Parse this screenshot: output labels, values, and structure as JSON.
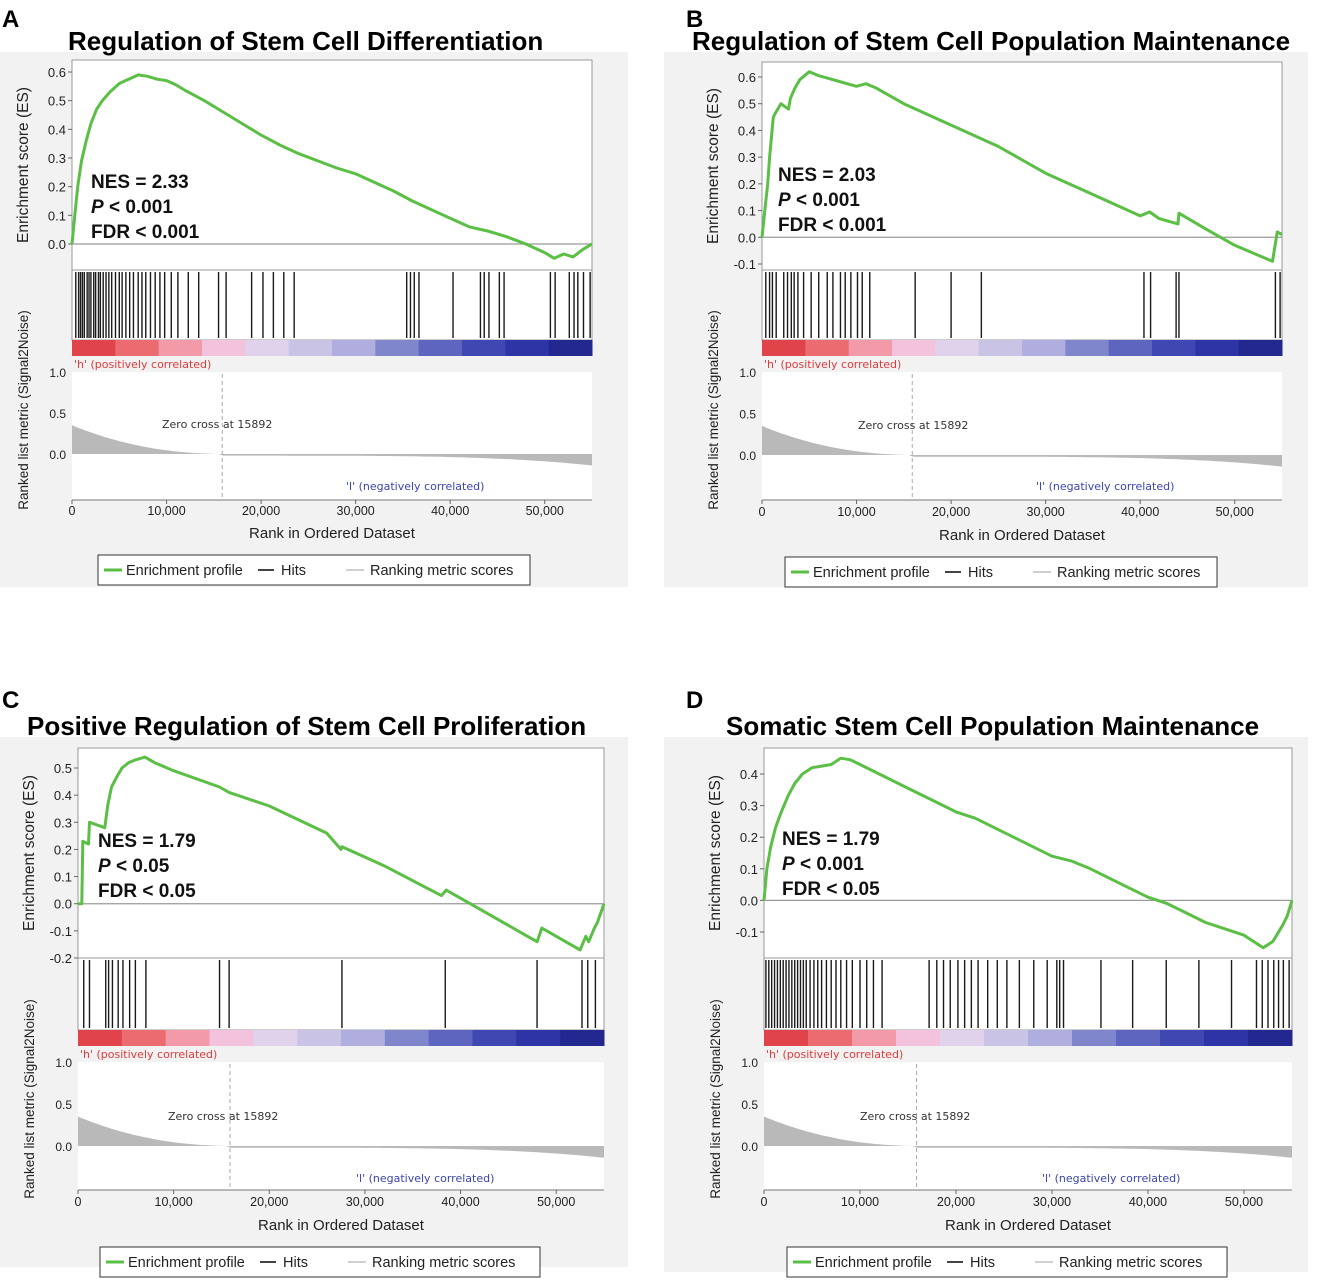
{
  "colors": {
    "profile": "#5bbf45",
    "hits": "#1a1a1a",
    "metric": "#b9b9b9",
    "background": "#f2f2f2",
    "pos_label": "#e03a3a",
    "neg_label": "#3a45b0"
  },
  "shared": {
    "ylabel_top": "Enrichment score (ES)",
    "ylabel_bottom": "Ranked list metric (Signal2Noise)",
    "xlabel": "Rank in Ordered Dataset",
    "pos_label": "'h' (positively correlated)",
    "neg_label": "'l' (negatively correlated)",
    "zero_cross": "Zero cross at 15892",
    "legend": [
      "Enrichment profile",
      "Hits",
      "Ranking metric scores"
    ],
    "metric_ticks": [
      "1.0",
      "0.5",
      "0.0"
    ]
  },
  "chart_data": [
    {
      "type": "line",
      "letter": "A",
      "title": "Regulation of Stem Cell Differentiation",
      "nes": "NES = 2.33",
      "p_sym": "P",
      "p_text": " < 0.001",
      "fdr": "FDR < 0.001",
      "xlim": [
        0,
        55000
      ],
      "ylim": [
        -0.02,
        0.61
      ],
      "yticks": [
        0,
        0.1,
        0.2,
        0.3,
        0.4,
        0.5,
        0.6
      ],
      "ytick_labels": [
        "0.0",
        "0.1",
        "0.2",
        "0.3",
        "0.4",
        "0.5",
        "0.6"
      ],
      "xticks": [
        0,
        10000,
        20000,
        30000,
        40000,
        50000
      ],
      "xtick_labels": [
        "0",
        "10,000",
        "20,000",
        "30,000",
        "40,000",
        "50,000"
      ],
      "es_x": [
        0,
        300,
        600,
        1000,
        1500,
        2000,
        2600,
        3200,
        4000,
        5000,
        6000,
        7000,
        8000,
        9000,
        10000,
        11000,
        12000,
        14000,
        16000,
        18000,
        20000,
        22000,
        24000,
        26000,
        28000,
        30000,
        32000,
        34000,
        36000,
        38000,
        40000,
        42000,
        44000,
        46000,
        48000,
        50000,
        51000,
        52000,
        53000,
        54000,
        55000
      ],
      "es_y": [
        0,
        0.1,
        0.2,
        0.29,
        0.36,
        0.42,
        0.47,
        0.5,
        0.53,
        0.56,
        0.575,
        0.59,
        0.585,
        0.575,
        0.57,
        0.555,
        0.535,
        0.5,
        0.46,
        0.42,
        0.38,
        0.345,
        0.315,
        0.29,
        0.265,
        0.245,
        0.215,
        0.185,
        0.15,
        0.12,
        0.09,
        0.06,
        0.045,
        0.025,
        0.0,
        -0.03,
        -0.05,
        -0.035,
        -0.045,
        -0.02,
        0.0
      ],
      "hits": [
        400,
        700,
        900,
        1100,
        1300,
        1600,
        1800,
        2000,
        2300,
        2500,
        2800,
        3000,
        3300,
        3600,
        3900,
        4200,
        4600,
        5000,
        5300,
        5700,
        6100,
        6500,
        7000,
        7400,
        7800,
        8300,
        8800,
        9300,
        9800,
        10500,
        11200,
        12300,
        13400,
        15500,
        16300,
        19000,
        20200,
        21300,
        22400,
        23500,
        35400,
        35800,
        36200,
        36700,
        40300,
        43200,
        43600,
        44100,
        45200,
        45700,
        50600,
        51100,
        52600,
        53100,
        53500,
        54100,
        54800
      ]
    },
    {
      "type": "line",
      "letter": "B",
      "title": "Regulation of Stem Cell Population Maintenance",
      "nes": "NES = 2.03",
      "p_sym": "P",
      "p_text": " < 0.001",
      "fdr": "FDR < 0.001",
      "xlim": [
        0,
        55000
      ],
      "ylim": [
        -0.12,
        0.65
      ],
      "yticks": [
        -0.1,
        0,
        0.1,
        0.2,
        0.3,
        0.4,
        0.5,
        0.6
      ],
      "ytick_labels": [
        "-0.1",
        "0.0",
        "0.1",
        "0.2",
        "0.3",
        "0.4",
        "0.5",
        "0.6"
      ],
      "xticks": [
        0,
        10000,
        20000,
        30000,
        40000,
        50000
      ],
      "xtick_labels": [
        "0",
        "10,000",
        "20,000",
        "30,000",
        "40,000",
        "50,000"
      ],
      "es_x": [
        0,
        300,
        600,
        800,
        1200,
        1500,
        2000,
        2800,
        3000,
        3500,
        4000,
        5000,
        6000,
        7000,
        8000,
        9000,
        10000,
        11000,
        12000,
        15000,
        20000,
        25000,
        30000,
        35000,
        40000,
        41000,
        42000,
        44000,
        44100,
        47000,
        50000,
        54000,
        54500,
        55000
      ],
      "es_y": [
        0,
        0.1,
        0.2,
        0.3,
        0.45,
        0.47,
        0.5,
        0.48,
        0.52,
        0.56,
        0.59,
        0.62,
        0.605,
        0.595,
        0.585,
        0.575,
        0.565,
        0.575,
        0.56,
        0.5,
        0.42,
        0.34,
        0.24,
        0.16,
        0.08,
        0.095,
        0.07,
        0.05,
        0.09,
        0.03,
        -0.03,
        -0.09,
        0.02,
        0.01
      ],
      "hits": [
        400,
        800,
        1100,
        1500,
        2300,
        2700,
        3100,
        3400,
        3800,
        4400,
        5200,
        6000,
        6900,
        7500,
        8300,
        8800,
        9400,
        10100,
        10600,
        11400,
        16200,
        20000,
        23200,
        40400,
        41100,
        43800,
        44100,
        54300,
        54800
      ]
    },
    {
      "type": "line",
      "letter": "C",
      "title": "Positive Regulation of Stem Cell Proliferation",
      "nes": "NES = 1.79",
      "p_sym": "P",
      "p_text": " < 0.05",
      "fdr": "FDR < 0.05",
      "xlim": [
        0,
        55000
      ],
      "ylim": [
        -0.22,
        0.56
      ],
      "yticks": [
        -0.2,
        -0.1,
        0,
        0.1,
        0.2,
        0.3,
        0.4,
        0.5
      ],
      "ytick_labels": [
        "-0.2",
        "-0.1",
        "0.0",
        "0.1",
        "0.2",
        "0.3",
        "0.4",
        "0.5"
      ],
      "xticks": [
        0,
        10000,
        20000,
        30000,
        40000,
        50000
      ],
      "xtick_labels": [
        "0",
        "10,000",
        "20,000",
        "30,000",
        "40,000",
        "50,000"
      ],
      "es_x": [
        0,
        400,
        500,
        1100,
        1200,
        2800,
        3100,
        3500,
        4100,
        4600,
        5300,
        6000,
        7000,
        8000,
        10000,
        14800,
        15800,
        20000,
        26000,
        27500,
        27600,
        32000,
        38000,
        38500,
        42000,
        47000,
        48000,
        48500,
        52500,
        53100,
        53400,
        54000,
        54300,
        55000
      ],
      "es_y": [
        0,
        0.0,
        0.23,
        0.22,
        0.3,
        0.28,
        0.36,
        0.43,
        0.47,
        0.5,
        0.52,
        0.53,
        0.54,
        0.52,
        0.49,
        0.43,
        0.41,
        0.36,
        0.26,
        0.2,
        0.21,
        0.14,
        0.03,
        0.05,
        -0.02,
        -0.12,
        -0.14,
        -0.09,
        -0.17,
        -0.12,
        -0.14,
        -0.09,
        -0.07,
        0.0
      ],
      "hits": [
        600,
        1200,
        2900,
        3200,
        3600,
        4200,
        4700,
        5400,
        6000,
        7100,
        14800,
        15800,
        27600,
        38400,
        48000,
        52700,
        53300,
        54100
      ]
    },
    {
      "type": "line",
      "letter": "D",
      "title": "Somatic Stem Cell Population Maintenance",
      "nes": "NES = 1.79",
      "p_sym": "P",
      "p_text": " < 0.001",
      "fdr": "FDR < 0.05",
      "xlim": [
        0,
        55000
      ],
      "ylim": [
        -0.17,
        0.46
      ],
      "yticks": [
        -0.1,
        0,
        0.1,
        0.2,
        0.3,
        0.4
      ],
      "ytick_labels": [
        "-0.1",
        "0.0",
        "0.1",
        "0.2",
        "0.3",
        "0.4"
      ],
      "xticks": [
        0,
        10000,
        20000,
        30000,
        40000,
        50000
      ],
      "xtick_labels": [
        "0",
        "10,000",
        "20,000",
        "30,000",
        "40,000",
        "50,000"
      ],
      "es_x": [
        0,
        300,
        700,
        1200,
        1800,
        2500,
        3200,
        4000,
        5000,
        6000,
        7000,
        8000,
        9000,
        10000,
        12000,
        14000,
        16000,
        18000,
        20000,
        22000,
        24000,
        26000,
        28000,
        30000,
        32000,
        34000,
        36000,
        38000,
        40000,
        42000,
        44000,
        46000,
        48000,
        50000,
        51000,
        52000,
        53000,
        54000,
        54500,
        55000
      ],
      "es_y": [
        0,
        0.1,
        0.17,
        0.23,
        0.28,
        0.33,
        0.37,
        0.4,
        0.42,
        0.425,
        0.43,
        0.45,
        0.445,
        0.43,
        0.4,
        0.37,
        0.34,
        0.31,
        0.28,
        0.26,
        0.23,
        0.2,
        0.17,
        0.14,
        0.125,
        0.1,
        0.07,
        0.04,
        0.01,
        -0.01,
        -0.04,
        -0.07,
        -0.09,
        -0.11,
        -0.13,
        -0.15,
        -0.13,
        -0.08,
        -0.05,
        0.0
      ],
      "hits": [
        200,
        500,
        800,
        1100,
        1400,
        1700,
        2000,
        2300,
        2600,
        2900,
        3200,
        3500,
        3800,
        4100,
        4400,
        4800,
        5200,
        5600,
        6000,
        6500,
        7000,
        7500,
        8000,
        8600,
        9200,
        10000,
        10700,
        11400,
        12300,
        17200,
        18000,
        18700,
        19400,
        20200,
        20900,
        21600,
        22300,
        23300,
        24300,
        25300,
        26600,
        28100,
        29500,
        30500,
        30800,
        31200,
        35100,
        38400,
        41900,
        45300,
        48700,
        51300,
        51900,
        52500,
        53100,
        53600,
        54100,
        54700
      ]
    }
  ]
}
